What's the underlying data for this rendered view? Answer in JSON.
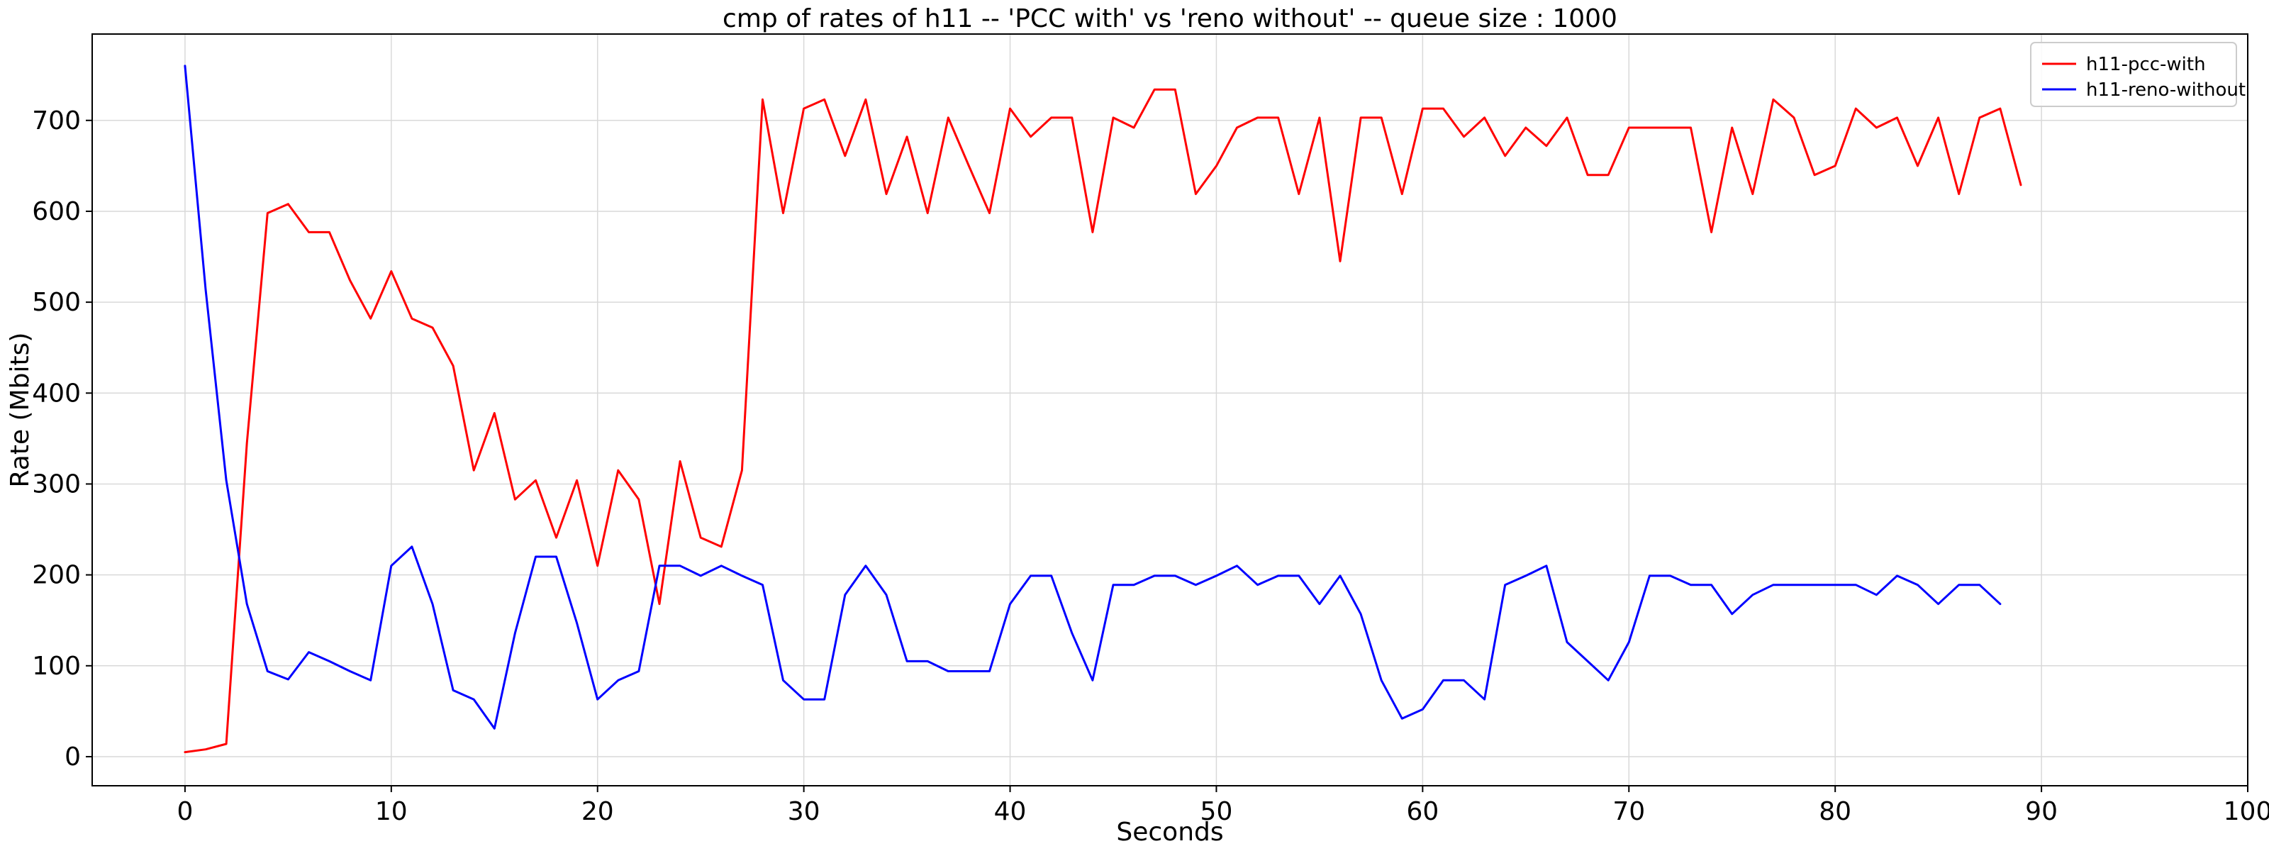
{
  "chart_data": {
    "type": "line",
    "title": "cmp of rates of h11 -- 'PCC with' vs 'reno without' -- queue size : 1000",
    "xlabel": "Seconds",
    "ylabel": "Rate (Mbits)",
    "xlim": [
      -4.5,
      100
    ],
    "ylim": [
      -32,
      795
    ],
    "xticks": [
      0,
      10,
      20,
      30,
      40,
      50,
      60,
      70,
      80,
      90,
      100
    ],
    "yticks": [
      0,
      100,
      200,
      300,
      400,
      500,
      600,
      700
    ],
    "grid": true,
    "legend_position": "top-right",
    "series": [
      {
        "name": "h11-pcc-with",
        "color": "#ff0000",
        "x": [
          0,
          1,
          2,
          3,
          4,
          5,
          6,
          7,
          8,
          9,
          10,
          11,
          12,
          13,
          14,
          15,
          16,
          17,
          18,
          19,
          20,
          21,
          22,
          23,
          24,
          25,
          26,
          27,
          28,
          29,
          30,
          31,
          32,
          33,
          34,
          35,
          36,
          37,
          38,
          39,
          40,
          41,
          42,
          43,
          44,
          45,
          46,
          47,
          48,
          49,
          50,
          51,
          52,
          53,
          54,
          55,
          56,
          57,
          58,
          59,
          60,
          61,
          62,
          63,
          64,
          65,
          66,
          67,
          68,
          69,
          70,
          71,
          72,
          73,
          74,
          75,
          76,
          77,
          78,
          79,
          80,
          81,
          82,
          83,
          84,
          85,
          86,
          87,
          88,
          89
        ],
        "values": [
          5,
          8,
          14,
          345,
          598,
          608,
          577,
          577,
          524,
          482,
          534,
          482,
          472,
          430,
          315,
          378,
          283,
          304,
          241,
          304,
          210,
          315,
          283,
          168,
          325,
          241,
          231,
          315,
          723,
          598,
          713,
          723,
          661,
          723,
          619,
          682,
          598,
          703,
          650,
          598,
          713,
          682,
          703,
          703,
          577,
          703,
          692,
          734,
          734,
          619,
          650,
          692,
          703,
          703,
          619,
          703,
          545,
          703,
          703,
          619,
          713,
          713,
          682,
          703,
          661,
          692,
          672,
          703,
          640,
          640,
          692,
          692,
          692,
          692,
          577,
          692,
          619,
          723,
          703,
          640,
          650,
          713,
          692,
          703,
          650,
          703,
          619,
          703,
          713,
          629
        ]
      },
      {
        "name": "h11-reno-without",
        "color": "#0000ff",
        "x": [
          0,
          1,
          2,
          3,
          4,
          5,
          6,
          7,
          8,
          9,
          10,
          11,
          12,
          13,
          14,
          15,
          16,
          17,
          18,
          19,
          20,
          21,
          22,
          23,
          24,
          25,
          26,
          27,
          28,
          29,
          30,
          31,
          32,
          33,
          34,
          35,
          36,
          37,
          38,
          39,
          40,
          41,
          42,
          43,
          44,
          45,
          46,
          47,
          48,
          49,
          50,
          51,
          52,
          53,
          54,
          55,
          56,
          57,
          58,
          59,
          60,
          61,
          62,
          63,
          64,
          65,
          66,
          67,
          68,
          69,
          70,
          71,
          72,
          73,
          74,
          75,
          76,
          77,
          78,
          79,
          80,
          81,
          82,
          83,
          84,
          85,
          86,
          87,
          88
        ],
        "values": [
          760,
          514,
          304,
          168,
          94,
          85,
          115,
          105,
          94,
          84,
          210,
          231,
          168,
          73,
          63,
          31,
          136,
          220,
          220,
          147,
          63,
          84,
          94,
          210,
          210,
          199,
          210,
          199,
          189,
          84,
          63,
          63,
          178,
          210,
          178,
          105,
          105,
          94,
          94,
          94,
          168,
          199,
          199,
          136,
          84,
          189,
          189,
          199,
          199,
          189,
          199,
          210,
          189,
          199,
          199,
          168,
          199,
          157,
          84,
          42,
          52,
          84,
          84,
          63,
          189,
          199,
          210,
          126,
          105,
          84,
          126,
          199,
          199,
          189,
          189,
          157,
          178,
          189,
          189,
          189,
          189,
          189,
          178,
          199,
          189,
          168,
          189,
          189,
          168
        ]
      }
    ]
  }
}
